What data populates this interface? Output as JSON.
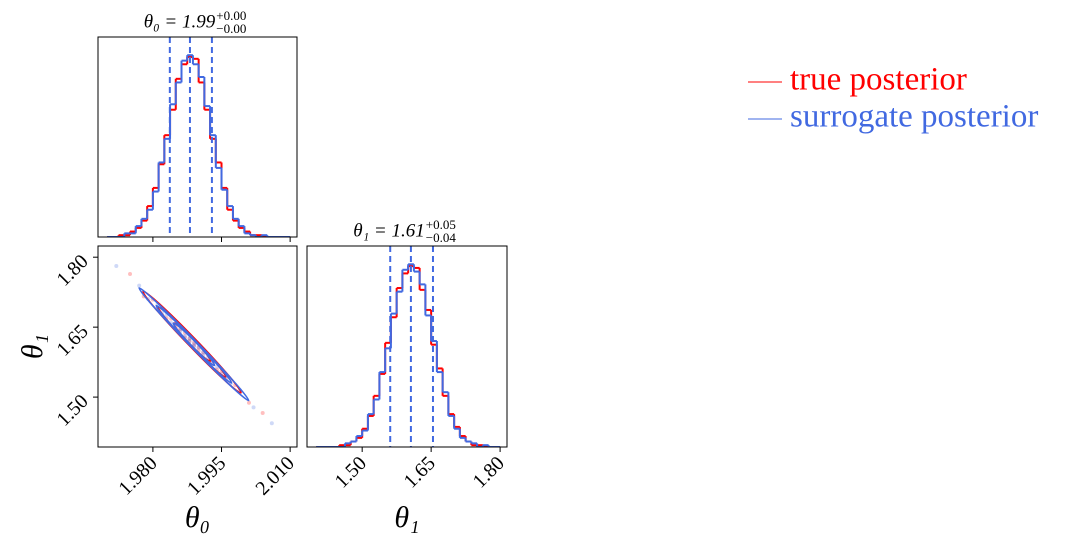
{
  "chart_data": [
    {
      "type": "histogram",
      "title": {
        "main": "θ₀ = 1.99",
        "upper": "+0.00",
        "lower": "−0.00"
      },
      "bins": [
        1.97,
        1.97125,
        1.9725,
        1.97375,
        1.975,
        1.97625,
        1.9775,
        1.97875,
        1.98,
        1.98125,
        1.9825,
        1.98375,
        1.985,
        1.98625,
        1.9875,
        1.98875,
        1.99,
        1.99125,
        1.9925,
        1.99375,
        1.995,
        1.99625,
        1.9975,
        1.99875,
        2.0,
        2.00125,
        2.0025,
        2.00375,
        2.005,
        2.00625,
        2.0075,
        2.00875,
        2.01
      ],
      "series": [
        {
          "name": "true posterior",
          "color": "#ff0000",
          "values": [
            0,
            0,
            1,
            1,
            3,
            5,
            9,
            17,
            27,
            40,
            56,
            70,
            87,
            95,
            99,
            98,
            85,
            70,
            54,
            41,
            27,
            15,
            9,
            5,
            3,
            1,
            1,
            0,
            0,
            0,
            0,
            0
          ]
        },
        {
          "name": "surrogate posterior",
          "color": "#4169e1",
          "values": [
            0,
            0,
            0,
            2,
            2,
            6,
            10,
            15,
            25,
            41,
            54,
            73,
            85,
            97,
            100,
            95,
            88,
            72,
            56,
            38,
            26,
            17,
            10,
            6,
            2,
            1,
            0,
            1,
            0,
            0,
            0,
            0
          ]
        }
      ],
      "quantiles": [
        1.9837,
        1.9881,
        1.9929
      ],
      "quantile_color": "#4169e1",
      "xlim": [
        1.968,
        2.0115
      ],
      "xticks": [
        1.98,
        1.995,
        2.01
      ],
      "ylim": [
        0,
        110
      ]
    },
    {
      "type": "scatter",
      "xlabel": "θ₀",
      "ylabel": "θ₁",
      "series": [
        {
          "color": "#ff0000",
          "x": [
            1.975,
            1.978,
            1.98,
            1.981,
            1.982,
            1.983,
            1.984,
            1.985,
            1.985,
            1.986,
            1.987,
            1.987,
            1.988,
            1.988,
            1.989,
            1.989,
            1.99,
            1.99,
            1.991,
            1.992,
            1.993,
            1.994,
            1.995,
            1.996,
            1.998,
            2.001,
            2.004
          ],
          "values": [
            1.764,
            1.716,
            1.709,
            1.688,
            1.69,
            1.669,
            1.668,
            1.65,
            1.658,
            1.645,
            1.628,
            1.638,
            1.62,
            1.626,
            1.611,
            1.617,
            1.6,
            1.607,
            1.595,
            1.578,
            1.576,
            1.559,
            1.556,
            1.538,
            1.526,
            1.488,
            1.466
          ]
        },
        {
          "color": "#4169e1",
          "x": [
            1.972,
            1.977,
            1.979,
            1.981,
            1.982,
            1.983,
            1.984,
            1.985,
            1.986,
            1.986,
            1.987,
            1.988,
            1.988,
            1.989,
            1.989,
            1.99,
            1.991,
            1.991,
            1.992,
            1.993,
            1.994,
            1.995,
            1.996,
            1.997,
            1.999,
            2.002,
            2.006
          ],
          "values": [
            1.781,
            1.739,
            1.71,
            1.698,
            1.68,
            1.677,
            1.659,
            1.656,
            1.641,
            1.647,
            1.631,
            1.625,
            1.619,
            1.614,
            1.609,
            1.606,
            1.59,
            1.597,
            1.585,
            1.57,
            1.565,
            1.549,
            1.545,
            1.529,
            1.515,
            1.478,
            1.444
          ]
        }
      ],
      "xlim": [
        1.968,
        2.0115
      ],
      "xticks": [
        {
          "value": 1.98,
          "label": "1.980"
        },
        1.995,
        {
          "value": 2.01,
          "label": "2.010"
        }
      ],
      "ylim": [
        1.393,
        1.824
      ],
      "yticks": [
        {
          "value": 1.8,
          "label": "1.80"
        },
        1.65,
        {
          "value": 1.5,
          "label": "1.50"
        }
      ]
    },
    {
      "type": "histogram",
      "title": {
        "main": "θ₁ = 1.61",
        "upper": "+0.05",
        "lower": "−0.04"
      },
      "xlabel": "θ₁",
      "bins": [
        1.4,
        1.4125,
        1.425,
        1.4375,
        1.45,
        1.4625,
        1.475,
        1.4875,
        1.5,
        1.5125,
        1.525,
        1.5375,
        1.55,
        1.5625,
        1.575,
        1.5875,
        1.6,
        1.6125,
        1.625,
        1.6375,
        1.65,
        1.6625,
        1.675,
        1.6875,
        1.7,
        1.7125,
        1.725,
        1.7375,
        1.75,
        1.7625,
        1.775,
        1.7875,
        1.8
      ],
      "series": [
        {
          "color": "#ff0000",
          "values": [
            0,
            0,
            0,
            0,
            1,
            1,
            3,
            5,
            10,
            17,
            28,
            40,
            57,
            71,
            87,
            95,
            99,
            98,
            86,
            75,
            56,
            43,
            28,
            18,
            11,
            6,
            3,
            1,
            1,
            0,
            0,
            0
          ]
        },
        {
          "color": "#4169e1",
          "values": [
            0,
            0,
            0,
            0,
            0,
            2,
            3,
            6,
            9,
            18,
            26,
            41,
            54,
            73,
            85,
            97,
            100,
            96,
            89,
            72,
            58,
            41,
            30,
            17,
            10,
            5,
            3,
            2,
            0,
            1,
            0,
            0
          ]
        }
      ],
      "quantiles": [
        1.561,
        1.606,
        1.654
      ],
      "quantile_color": "#4169e1",
      "xlim": [
        1.38,
        1.815
      ],
      "xticks": [
        {
          "value": 1.5,
          "label": "1.50"
        },
        1.65,
        {
          "value": 1.8,
          "label": "1.80"
        }
      ],
      "ylim": [
        0,
        110
      ]
    }
  ]
}
